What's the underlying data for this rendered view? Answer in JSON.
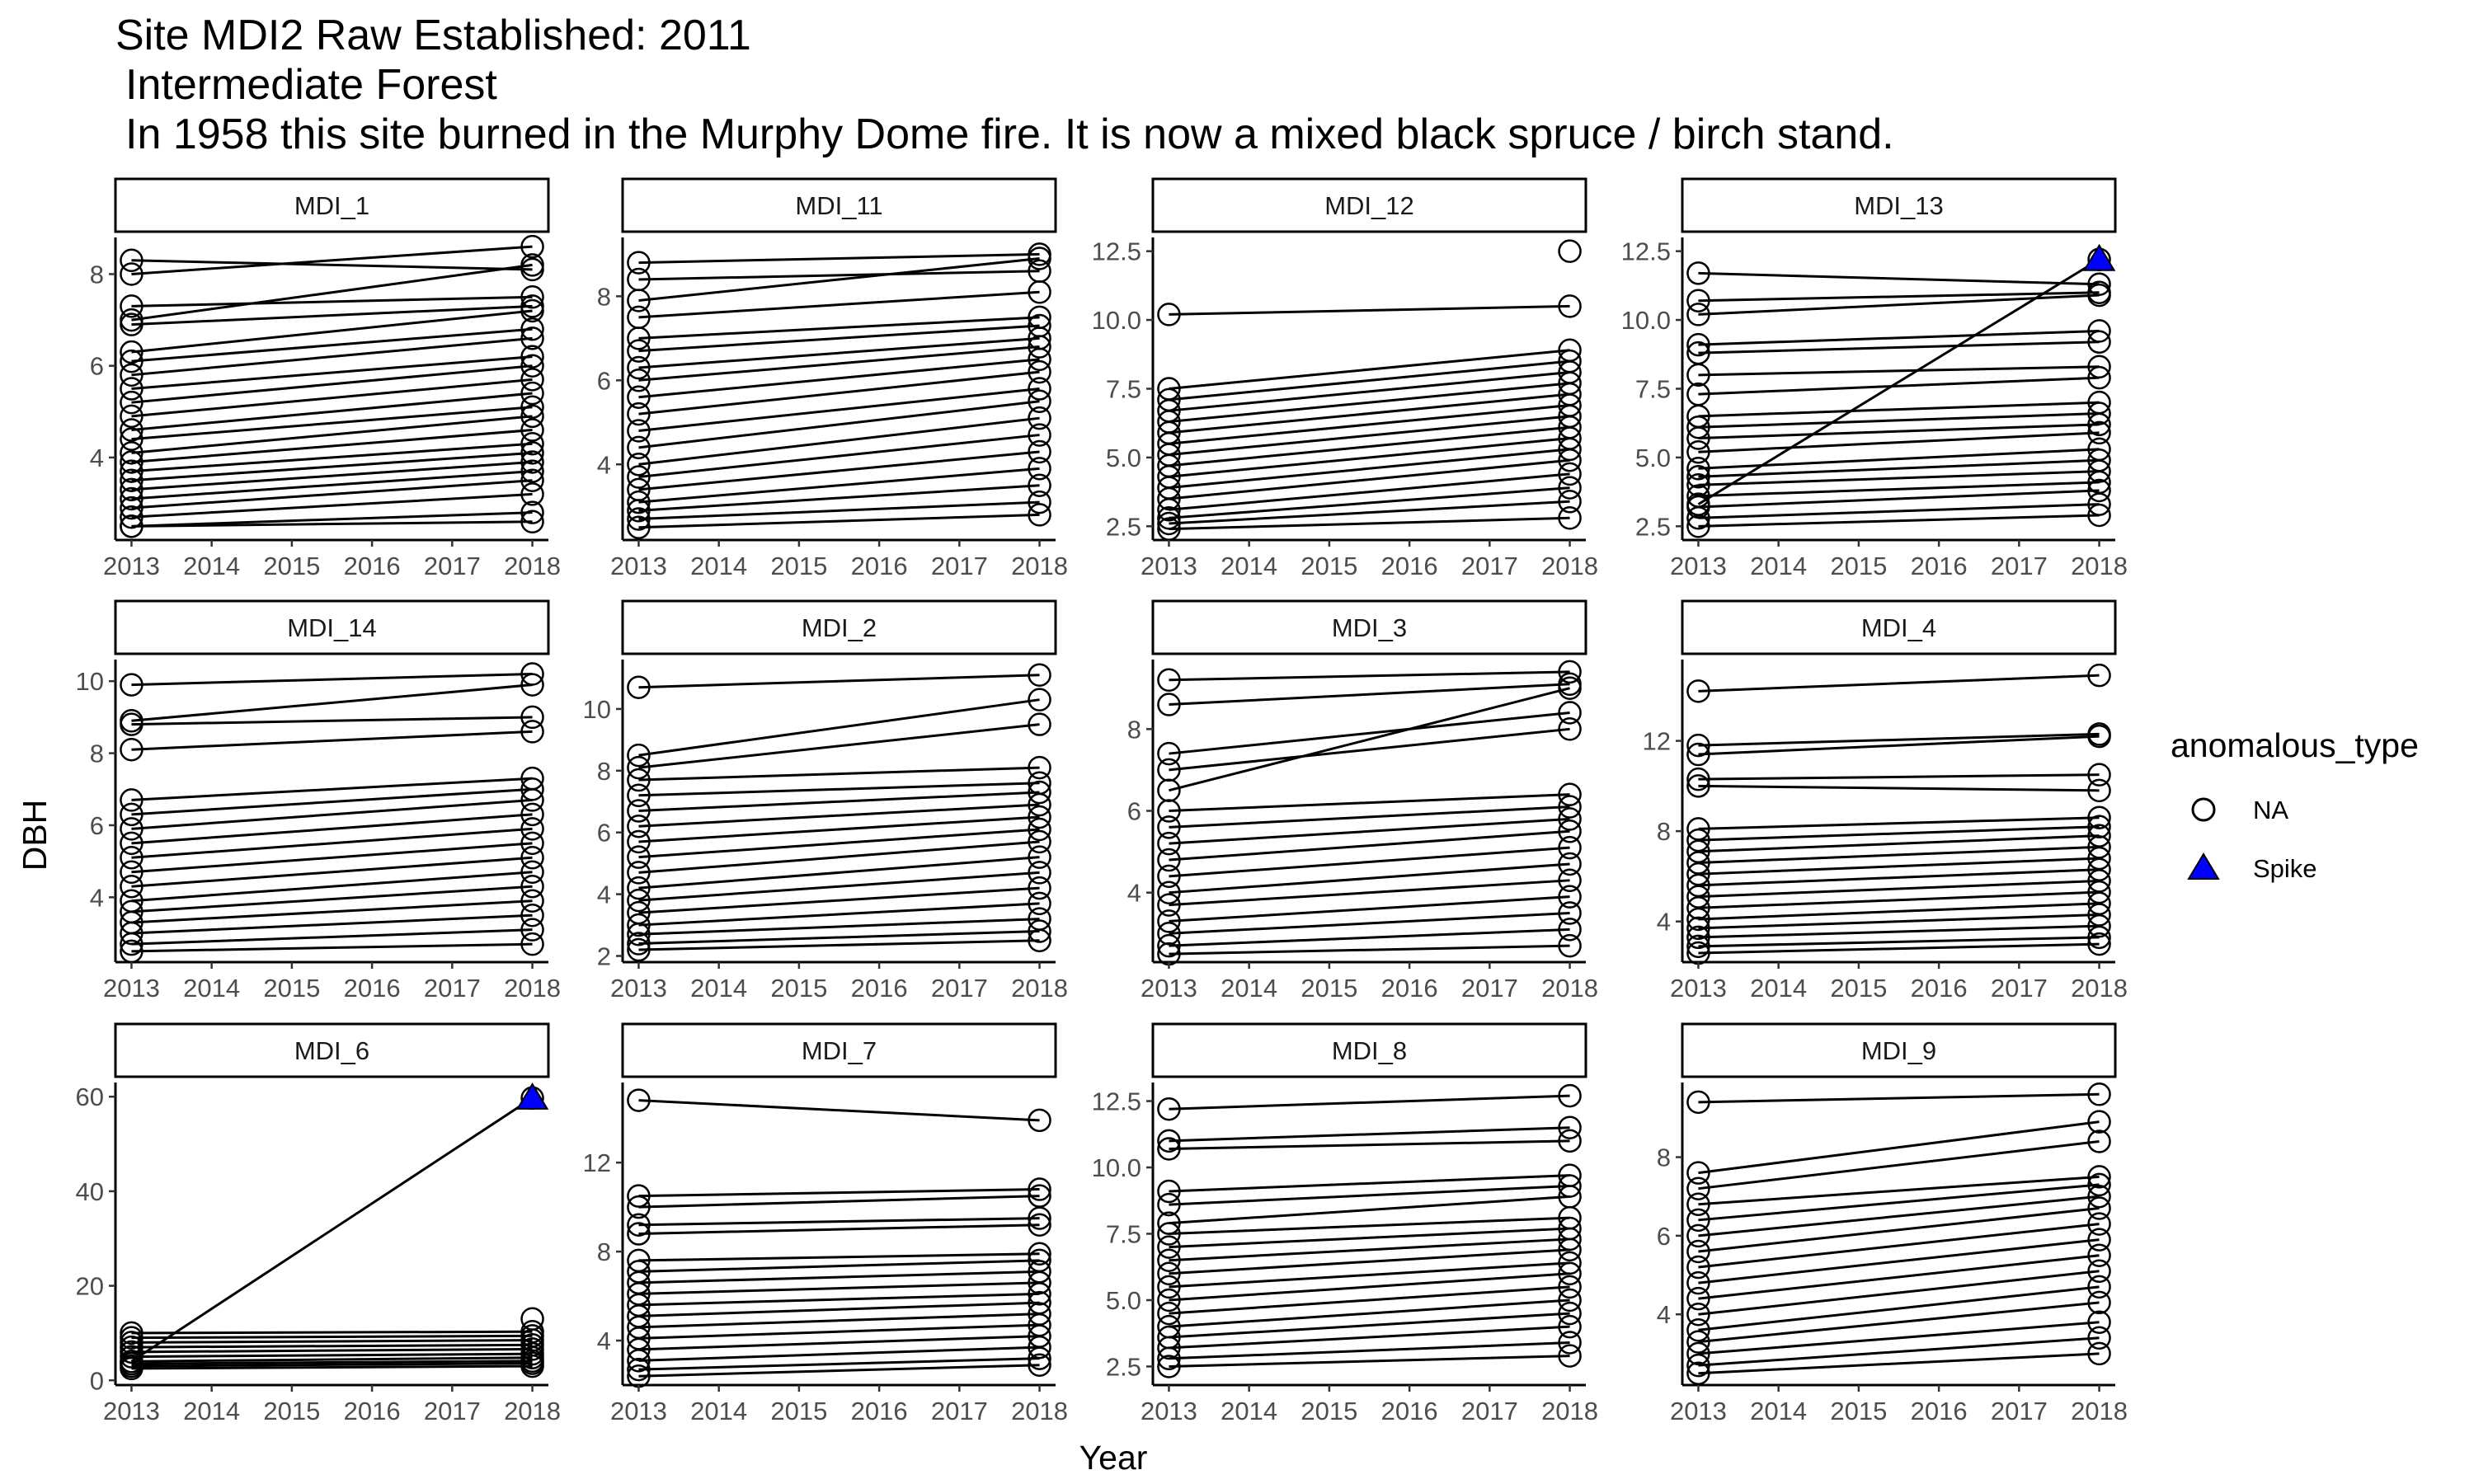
{
  "chart_data": {
    "type": "line",
    "title": "Site MDI2 Raw Established: 2011",
    "subtitle_lines": [
      "Intermediate Forest",
      "In 1958 this site burned in the Murphy Dome fire. It is now a mixed black spruce / birch stand."
    ],
    "xlabel": "Year",
    "ylabel": "DBH",
    "x_ticks": [
      "2013",
      "2014",
      "2015",
      "2016",
      "2017",
      "2018"
    ],
    "xlim": [
      2012.8,
      2018.2
    ],
    "legend": {
      "title": "anomalous_type",
      "position": "right",
      "entries": [
        {
          "label": "NA",
          "shape": "open-circle",
          "color": "#000000"
        },
        {
          "label": "Spike",
          "shape": "triangle",
          "color": "#0000ff"
        }
      ]
    },
    "panels": [
      {
        "name": "MDI_1",
        "ylim": [
          2.2,
          8.8
        ],
        "yticks": [
          "4",
          "6",
          "8"
        ],
        "series": [
          [
            8.3,
            8.1
          ],
          [
            8.0,
            8.6
          ],
          [
            7.3,
            7.5
          ],
          [
            7.0,
            8.2
          ],
          [
            6.9,
            7.3
          ],
          [
            6.3,
            7.2
          ],
          [
            6.1,
            6.8
          ],
          [
            5.8,
            6.6
          ],
          [
            5.5,
            6.2
          ],
          [
            5.2,
            6.0
          ],
          [
            4.9,
            5.7
          ],
          [
            4.6,
            5.4
          ],
          [
            4.4,
            5.1
          ],
          [
            4.1,
            4.9
          ],
          [
            3.9,
            4.6
          ],
          [
            3.7,
            4.3
          ],
          [
            3.5,
            4.1
          ],
          [
            3.3,
            3.9
          ],
          [
            3.1,
            3.7
          ],
          [
            2.9,
            3.5
          ],
          [
            2.7,
            3.2
          ],
          [
            2.5,
            2.8
          ],
          [
            2.5,
            2.6
          ]
        ],
        "spikes": []
      },
      {
        "name": "MDI_11",
        "ylim": [
          2.2,
          9.4
        ],
        "yticks": [
          "4",
          "6",
          "8"
        ],
        "series": [
          [
            8.8,
            9.0
          ],
          [
            8.4,
            8.6
          ],
          [
            7.9,
            8.9
          ],
          [
            7.5,
            8.1
          ],
          [
            7.0,
            7.5
          ],
          [
            6.7,
            7.3
          ],
          [
            6.3,
            7.0
          ],
          [
            6.0,
            6.8
          ],
          [
            5.6,
            6.5
          ],
          [
            5.2,
            6.2
          ],
          [
            4.8,
            5.8
          ],
          [
            4.4,
            5.5
          ],
          [
            4.0,
            5.1
          ],
          [
            3.7,
            4.7
          ],
          [
            3.4,
            4.3
          ],
          [
            3.1,
            3.9
          ],
          [
            2.9,
            3.5
          ],
          [
            2.7,
            3.1
          ],
          [
            2.5,
            2.8
          ]
        ],
        "spikes": []
      },
      {
        "name": "MDI_12",
        "ylim": [
          2.0,
          13.0
        ],
        "yticks": [
          "2.5",
          "5.0",
          "7.5",
          "10.0",
          "12.5"
        ],
        "series": [
          [
            10.2,
            10.5
          ],
          [
            7.5,
            8.9
          ],
          [
            7.1,
            8.5
          ],
          [
            6.7,
            8.1
          ],
          [
            6.3,
            7.7
          ],
          [
            5.9,
            7.3
          ],
          [
            5.5,
            6.9
          ],
          [
            5.1,
            6.5
          ],
          [
            4.7,
            6.1
          ],
          [
            4.3,
            5.7
          ],
          [
            3.9,
            5.3
          ],
          [
            3.5,
            4.9
          ],
          [
            3.1,
            4.4
          ],
          [
            2.8,
            3.9
          ],
          [
            2.6,
            3.4
          ],
          [
            2.4,
            2.8
          ]
        ],
        "spikes": [
          {
            "x": 2018,
            "y": 12.5,
            "type": "NA"
          }
        ]
      },
      {
        "name": "MDI_13",
        "ylim": [
          2.0,
          13.0
        ],
        "yticks": [
          "2.5",
          "5.0",
          "7.5",
          "10.0",
          "12.5"
        ],
        "series": [
          [
            11.7,
            11.3
          ],
          [
            10.7,
            11.0
          ],
          [
            10.2,
            10.9
          ],
          [
            9.1,
            9.6
          ],
          [
            8.8,
            9.2
          ],
          [
            8.0,
            8.3
          ],
          [
            7.3,
            7.9
          ],
          [
            6.5,
            7.0
          ],
          [
            6.1,
            6.6
          ],
          [
            5.7,
            6.2
          ],
          [
            5.2,
            5.9
          ],
          [
            4.6,
            5.3
          ],
          [
            4.3,
            4.9
          ],
          [
            4.0,
            4.5
          ],
          [
            3.6,
            4.1
          ],
          [
            3.2,
            3.8
          ],
          [
            2.8,
            3.3
          ],
          [
            2.5,
            2.9
          ],
          [
            3.3,
            12.2
          ]
        ],
        "spikes": [
          {
            "x": 2018,
            "y": 12.2,
            "type": "Spike"
          }
        ]
      },
      {
        "name": "MDI_14",
        "ylim": [
          2.2,
          10.6
        ],
        "yticks": [
          "4",
          "6",
          "8",
          "10"
        ],
        "series": [
          [
            9.9,
            10.2
          ],
          [
            8.9,
            9.9
          ],
          [
            8.8,
            9.0
          ],
          [
            8.1,
            8.6
          ],
          [
            6.7,
            7.3
          ],
          [
            6.3,
            7.0
          ],
          [
            5.9,
            6.7
          ],
          [
            5.5,
            6.3
          ],
          [
            5.1,
            5.9
          ],
          [
            4.7,
            5.5
          ],
          [
            4.3,
            5.1
          ],
          [
            3.9,
            4.7
          ],
          [
            3.6,
            4.3
          ],
          [
            3.3,
            3.9
          ],
          [
            3.0,
            3.5
          ],
          [
            2.7,
            3.1
          ],
          [
            2.5,
            2.7
          ]
        ],
        "spikes": []
      },
      {
        "name": "MDI_2",
        "ylim": [
          1.8,
          11.6
        ],
        "yticks": [
          "2",
          "4",
          "6",
          "8",
          "10"
        ],
        "series": [
          [
            10.7,
            11.1
          ],
          [
            8.5,
            10.3
          ],
          [
            8.1,
            9.5
          ],
          [
            7.7,
            8.1
          ],
          [
            7.2,
            7.6
          ],
          [
            6.7,
            7.3
          ],
          [
            6.2,
            6.9
          ],
          [
            5.7,
            6.5
          ],
          [
            5.2,
            6.1
          ],
          [
            4.7,
            5.7
          ],
          [
            4.2,
            5.2
          ],
          [
            3.8,
            4.7
          ],
          [
            3.4,
            4.2
          ],
          [
            3.0,
            3.7
          ],
          [
            2.7,
            3.2
          ],
          [
            2.4,
            2.8
          ],
          [
            2.2,
            2.5
          ]
        ],
        "spikes": []
      },
      {
        "name": "MDI_3",
        "ylim": [
          2.3,
          9.7
        ],
        "yticks": [
          "4",
          "6",
          "8"
        ],
        "series": [
          [
            9.2,
            9.4
          ],
          [
            8.6,
            9.1
          ],
          [
            7.4,
            8.4
          ],
          [
            7.0,
            8.0
          ],
          [
            6.5,
            9.0
          ],
          [
            6.0,
            6.4
          ],
          [
            5.6,
            6.1
          ],
          [
            5.2,
            5.8
          ],
          [
            4.8,
            5.5
          ],
          [
            4.4,
            5.1
          ],
          [
            4.0,
            4.7
          ],
          [
            3.7,
            4.3
          ],
          [
            3.3,
            3.9
          ],
          [
            3.0,
            3.5
          ],
          [
            2.7,
            3.1
          ],
          [
            2.5,
            2.7
          ]
        ],
        "spikes": []
      },
      {
        "name": "MDI_4",
        "ylim": [
          2.2,
          15.6
        ],
        "yticks": [
          "4",
          "8",
          "12"
        ],
        "series": [
          [
            14.2,
            14.9
          ],
          [
            11.8,
            12.3
          ],
          [
            11.4,
            12.2
          ],
          [
            10.3,
            10.5
          ],
          [
            10.0,
            9.8
          ],
          [
            8.1,
            8.6
          ],
          [
            7.6,
            8.2
          ],
          [
            7.1,
            7.8
          ],
          [
            6.6,
            7.3
          ],
          [
            6.1,
            6.8
          ],
          [
            5.6,
            6.3
          ],
          [
            5.1,
            5.8
          ],
          [
            4.6,
            5.3
          ],
          [
            4.1,
            4.8
          ],
          [
            3.7,
            4.3
          ],
          [
            3.3,
            3.8
          ],
          [
            2.9,
            3.3
          ],
          [
            2.6,
            3.0
          ]
        ],
        "spikes": []
      },
      {
        "name": "MDI_6",
        "ylim": [
          -1.0,
          63.0
        ],
        "yticks": [
          "0",
          "20",
          "40",
          "60"
        ],
        "series": [
          [
            10.0,
            10.3
          ],
          [
            9.0,
            9.4
          ],
          [
            8.0,
            8.5
          ],
          [
            7.0,
            7.5
          ],
          [
            6.0,
            6.6
          ],
          [
            5.0,
            5.6
          ],
          [
            4.0,
            4.8
          ],
          [
            3.5,
            4.1
          ],
          [
            3.0,
            3.6
          ],
          [
            2.5,
            3.0
          ],
          [
            4.0,
            59.7
          ]
        ],
        "spikes": [
          {
            "x": 2018,
            "y": 59.7,
            "type": "Spike"
          },
          {
            "x": 2018,
            "y": 13.0,
            "type": "NA"
          }
        ]
      },
      {
        "name": "MDI_7",
        "ylim": [
          2.0,
          15.6
        ],
        "yticks": [
          "4",
          "8",
          "12"
        ],
        "series": [
          [
            14.8,
            13.9
          ],
          [
            10.5,
            10.8
          ],
          [
            10.0,
            10.5
          ],
          [
            9.2,
            9.5
          ],
          [
            8.8,
            9.2
          ],
          [
            7.6,
            7.9
          ],
          [
            7.1,
            7.6
          ],
          [
            6.6,
            7.1
          ],
          [
            6.1,
            6.6
          ],
          [
            5.6,
            6.1
          ],
          [
            5.1,
            5.7
          ],
          [
            4.6,
            5.2
          ],
          [
            4.1,
            4.7
          ],
          [
            3.6,
            4.2
          ],
          [
            3.1,
            3.7
          ],
          [
            2.7,
            3.2
          ],
          [
            2.4,
            2.9
          ]
        ],
        "spikes": []
      },
      {
        "name": "MDI_8",
        "ylim": [
          1.8,
          13.2
        ],
        "yticks": [
          "2.5",
          "5.0",
          "7.5",
          "10.0",
          "12.5"
        ],
        "series": [
          [
            12.2,
            12.7
          ],
          [
            11.0,
            11.5
          ],
          [
            10.7,
            11.0
          ],
          [
            9.1,
            9.7
          ],
          [
            8.6,
            9.3
          ],
          [
            7.9,
            8.9
          ],
          [
            7.5,
            8.1
          ],
          [
            7.0,
            7.7
          ],
          [
            6.5,
            7.3
          ],
          [
            6.0,
            6.9
          ],
          [
            5.5,
            6.4
          ],
          [
            5.0,
            6.0
          ],
          [
            4.5,
            5.5
          ],
          [
            4.0,
            5.0
          ],
          [
            3.6,
            4.5
          ],
          [
            3.2,
            4.0
          ],
          [
            2.8,
            3.4
          ],
          [
            2.5,
            2.9
          ]
        ],
        "spikes": []
      },
      {
        "name": "MDI_9",
        "ylim": [
          2.2,
          9.9
        ],
        "yticks": [
          "4",
          "6",
          "8"
        ],
        "series": [
          [
            9.4,
            9.6
          ],
          [
            7.6,
            8.9
          ],
          [
            7.2,
            8.4
          ],
          [
            6.8,
            7.5
          ],
          [
            6.4,
            7.3
          ],
          [
            6.0,
            7.0
          ],
          [
            5.6,
            6.7
          ],
          [
            5.2,
            6.3
          ],
          [
            4.8,
            5.9
          ],
          [
            4.4,
            5.5
          ],
          [
            4.0,
            5.1
          ],
          [
            3.6,
            4.7
          ],
          [
            3.3,
            4.3
          ],
          [
            3.0,
            3.8
          ],
          [
            2.7,
            3.4
          ],
          [
            2.5,
            3.0
          ]
        ],
        "spikes": []
      }
    ]
  }
}
